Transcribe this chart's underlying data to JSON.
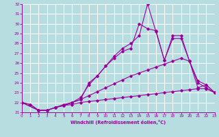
{
  "background_color": "#b8dde0",
  "grid_color": "#ffffff",
  "line_color": "#990099",
  "spine_color": "#990099",
  "xlim": [
    0,
    23
  ],
  "ylim": [
    21,
    32
  ],
  "yticks": [
    21,
    22,
    23,
    24,
    25,
    26,
    27,
    28,
    29,
    30,
    31,
    32
  ],
  "xticks": [
    0,
    1,
    2,
    3,
    4,
    5,
    6,
    7,
    8,
    9,
    10,
    11,
    12,
    13,
    14,
    15,
    16,
    17,
    18,
    19,
    20,
    21,
    22,
    23
  ],
  "xlabel": "Windchill (Refroidissement éolien,°C)",
  "line1": {
    "x": [
      0,
      1,
      2,
      3,
      4,
      5,
      6,
      7,
      8,
      9,
      10,
      11,
      12,
      13,
      14,
      15,
      16,
      17,
      18,
      19,
      20,
      21,
      22,
      23
    ],
    "y": [
      22.0,
      21.8,
      21.2,
      21.2,
      21.5,
      21.7,
      21.8,
      22.0,
      22.1,
      22.2,
      22.3,
      22.4,
      22.5,
      22.6,
      22.7,
      22.8,
      22.9,
      23.0,
      23.1,
      23.2,
      23.3,
      23.4,
      23.4,
      23.0
    ]
  },
  "line2": {
    "x": [
      0,
      1,
      2,
      3,
      4,
      5,
      6,
      7,
      8,
      9,
      10,
      11,
      12,
      13,
      14,
      15,
      16,
      17,
      18,
      19,
      20,
      21,
      22,
      23
    ],
    "y": [
      22.0,
      21.8,
      21.2,
      21.2,
      21.5,
      21.7,
      22.0,
      22.3,
      22.7,
      23.1,
      23.5,
      23.9,
      24.3,
      24.7,
      25.0,
      25.3,
      25.6,
      25.9,
      26.2,
      26.5,
      26.2,
      23.5,
      23.8,
      23.0
    ]
  },
  "line3": {
    "x": [
      0,
      2,
      3,
      4,
      5,
      6,
      7,
      8,
      9,
      10,
      11,
      12,
      13,
      14,
      15,
      16,
      17,
      18,
      19,
      20,
      21,
      22,
      23
    ],
    "y": [
      22.0,
      21.2,
      21.2,
      21.5,
      21.7,
      22.0,
      22.5,
      23.8,
      24.7,
      25.7,
      26.5,
      27.2,
      27.5,
      30.0,
      29.5,
      29.3,
      26.3,
      28.5,
      28.5,
      26.2,
      24.2,
      23.8,
      23.0
    ]
  },
  "line4": {
    "x": [
      0,
      2,
      3,
      4,
      5,
      6,
      7,
      8,
      9,
      10,
      11,
      12,
      13,
      14,
      15,
      16,
      17,
      18,
      19,
      20,
      21,
      22,
      23
    ],
    "y": [
      22.0,
      21.2,
      21.2,
      21.5,
      21.8,
      22.0,
      22.3,
      24.0,
      24.7,
      25.7,
      26.7,
      27.5,
      28.0,
      28.8,
      32.0,
      29.2,
      26.3,
      28.8,
      28.8,
      26.2,
      24.0,
      23.5,
      23.0
    ]
  }
}
